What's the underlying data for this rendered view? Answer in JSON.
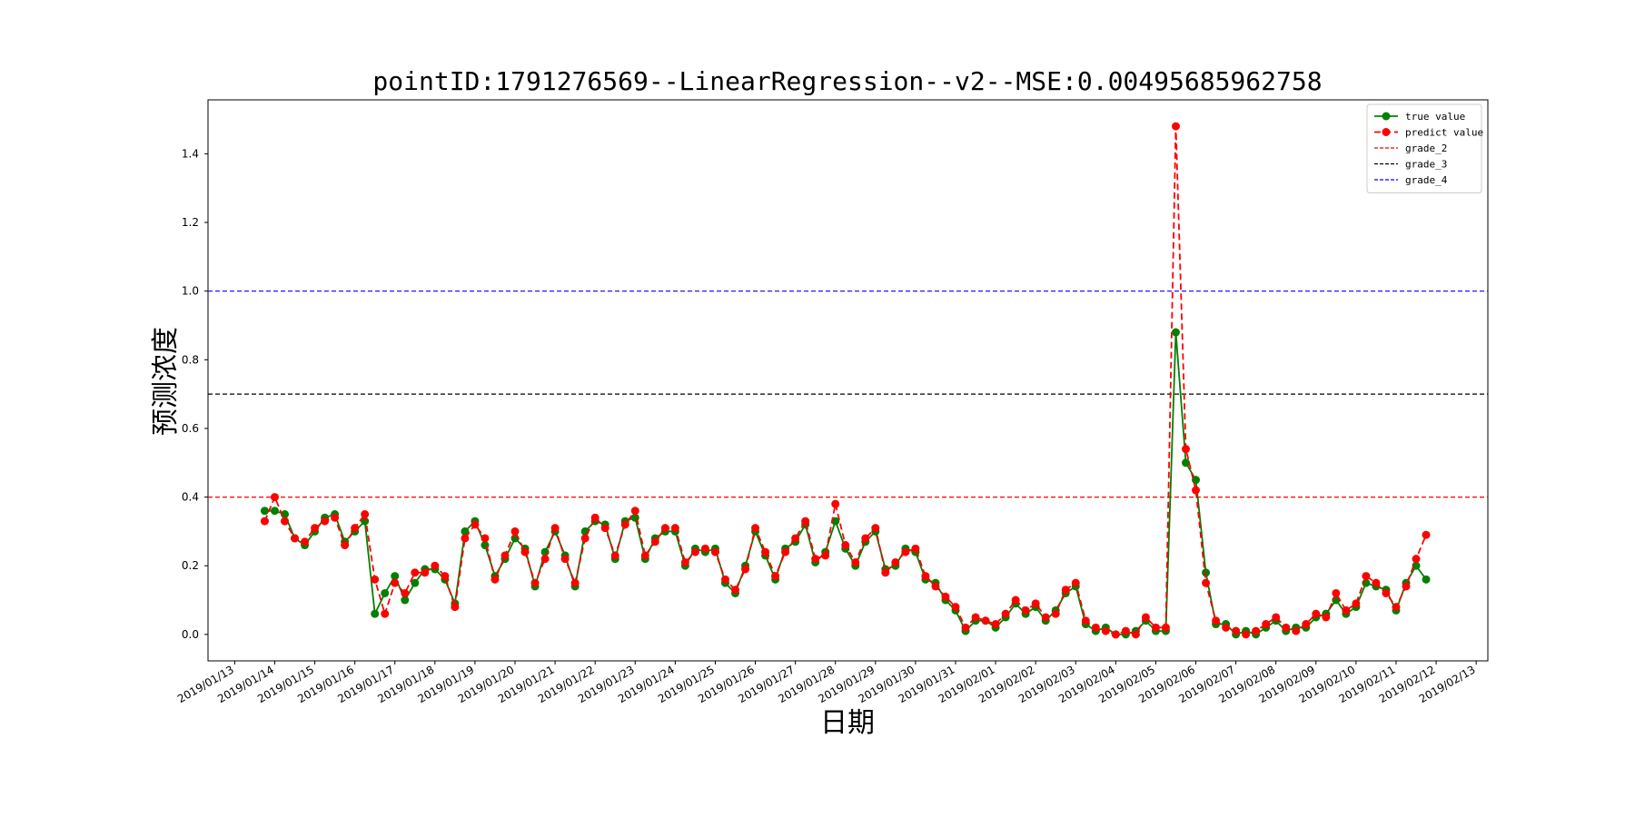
{
  "chart_data": {
    "type": "line",
    "title": "pointID:1791276569--LinearRegression--v2--MSE:0.00495685962758",
    "x_label": "日期",
    "y_label": "预测浓度",
    "x": [
      "2019/01/13 18:00",
      "2019/01/14 00:00",
      "2019/01/14 06:00",
      "2019/01/14 12:00",
      "2019/01/14 18:00",
      "2019/01/15 00:00",
      "2019/01/15 06:00",
      "2019/01/15 12:00",
      "2019/01/15 18:00",
      "2019/01/16 00:00",
      "2019/01/16 06:00",
      "2019/01/16 12:00",
      "2019/01/16 18:00",
      "2019/01/17 00:00",
      "2019/01/17 06:00",
      "2019/01/17 12:00",
      "2019/01/17 18:00",
      "2019/01/18 00:00",
      "2019/01/18 06:00",
      "2019/01/18 12:00",
      "2019/01/18 18:00",
      "2019/01/19 00:00",
      "2019/01/19 06:00",
      "2019/01/19 12:00",
      "2019/01/19 18:00",
      "2019/01/20 00:00",
      "2019/01/20 06:00",
      "2019/01/20 12:00",
      "2019/01/20 18:00",
      "2019/01/21 00:00",
      "2019/01/21 06:00",
      "2019/01/21 12:00",
      "2019/01/21 18:00",
      "2019/01/22 00:00",
      "2019/01/22 06:00",
      "2019/01/22 12:00",
      "2019/01/22 18:00",
      "2019/01/23 00:00",
      "2019/01/23 06:00",
      "2019/01/23 12:00",
      "2019/01/23 18:00",
      "2019/01/24 00:00",
      "2019/01/24 06:00",
      "2019/01/24 12:00",
      "2019/01/24 18:00",
      "2019/01/25 00:00",
      "2019/01/25 06:00",
      "2019/01/25 12:00",
      "2019/01/25 18:00",
      "2019/01/26 00:00",
      "2019/01/26 06:00",
      "2019/01/26 12:00",
      "2019/01/26 18:00",
      "2019/01/27 00:00",
      "2019/01/27 06:00",
      "2019/01/27 12:00",
      "2019/01/27 18:00",
      "2019/01/28 00:00",
      "2019/01/28 06:00",
      "2019/01/28 12:00",
      "2019/01/28 18:00",
      "2019/01/29 00:00",
      "2019/01/29 06:00",
      "2019/01/29 12:00",
      "2019/01/29 18:00",
      "2019/01/30 00:00",
      "2019/01/30 06:00",
      "2019/01/30 12:00",
      "2019/01/30 18:00",
      "2019/01/31 00:00",
      "2019/01/31 06:00",
      "2019/01/31 12:00",
      "2019/01/31 18:00",
      "2019/02/01 00:00",
      "2019/02/01 06:00",
      "2019/02/01 12:00",
      "2019/02/01 18:00",
      "2019/02/02 00:00",
      "2019/02/02 06:00",
      "2019/02/02 12:00",
      "2019/02/02 18:00",
      "2019/02/03 00:00",
      "2019/02/03 06:00",
      "2019/02/03 12:00",
      "2019/02/03 18:00",
      "2019/02/04 00:00",
      "2019/02/04 06:00",
      "2019/02/04 12:00",
      "2019/02/04 18:00",
      "2019/02/05 00:00",
      "2019/02/05 06:00",
      "2019/02/05 12:00",
      "2019/02/05 18:00",
      "2019/02/06 00:00",
      "2019/02/06 06:00",
      "2019/02/06 12:00",
      "2019/02/06 18:00",
      "2019/02/07 00:00",
      "2019/02/07 06:00",
      "2019/02/07 12:00",
      "2019/02/07 18:00",
      "2019/02/08 00:00",
      "2019/02/08 06:00",
      "2019/02/08 12:00",
      "2019/02/08 18:00",
      "2019/02/09 00:00",
      "2019/02/09 06:00",
      "2019/02/09 12:00",
      "2019/02/09 18:00",
      "2019/02/10 00:00",
      "2019/02/10 06:00",
      "2019/02/10 12:00",
      "2019/02/10 18:00",
      "2019/02/11 00:00",
      "2019/02/11 06:00",
      "2019/02/11 12:00",
      "2019/02/11 18:00"
    ],
    "series": [
      {
        "name": "true value",
        "color": "green",
        "linestyle": "solid",
        "values": [
          0.36,
          0.36,
          0.35,
          0.28,
          0.26,
          0.3,
          0.34,
          0.35,
          0.27,
          0.3,
          0.33,
          0.06,
          0.12,
          0.17,
          0.1,
          0.15,
          0.19,
          0.19,
          0.16,
          0.09,
          0.3,
          0.33,
          0.26,
          0.17,
          0.22,
          0.28,
          0.25,
          0.14,
          0.24,
          0.3,
          0.23,
          0.14,
          0.3,
          0.33,
          0.32,
          0.22,
          0.33,
          0.34,
          0.22,
          0.28,
          0.3,
          0.3,
          0.2,
          0.25,
          0.24,
          0.25,
          0.15,
          0.12,
          0.2,
          0.3,
          0.23,
          0.16,
          0.25,
          0.27,
          0.32,
          0.21,
          0.24,
          0.33,
          0.25,
          0.2,
          0.27,
          0.3,
          0.19,
          0.2,
          0.25,
          0.24,
          0.16,
          0.15,
          0.1,
          0.07,
          0.01,
          0.04,
          0.04,
          0.02,
          0.05,
          0.09,
          0.06,
          0.08,
          0.04,
          0.07,
          0.12,
          0.14,
          0.03,
          0.01,
          0.02,
          0.0,
          0.0,
          0.01,
          0.04,
          0.01,
          0.01,
          0.88,
          0.5,
          0.45,
          0.18,
          0.03,
          0.03,
          0.0,
          0.01,
          0.0,
          0.02,
          0.04,
          0.01,
          0.02,
          0.02,
          0.05,
          0.06,
          0.1,
          0.06,
          0.08,
          0.15,
          0.14,
          0.13,
          0.07,
          0.15,
          0.2,
          0.16
        ]
      },
      {
        "name": "predict value",
        "color": "red",
        "linestyle": "dashed",
        "values": [
          0.33,
          0.4,
          0.33,
          0.28,
          0.27,
          0.31,
          0.33,
          0.34,
          0.26,
          0.31,
          0.35,
          0.16,
          0.06,
          0.15,
          0.12,
          0.18,
          0.18,
          0.2,
          0.17,
          0.08,
          0.28,
          0.32,
          0.28,
          0.16,
          0.23,
          0.3,
          0.24,
          0.15,
          0.22,
          0.31,
          0.22,
          0.15,
          0.28,
          0.34,
          0.31,
          0.23,
          0.32,
          0.36,
          0.23,
          0.27,
          0.31,
          0.31,
          0.21,
          0.24,
          0.25,
          0.24,
          0.16,
          0.13,
          0.19,
          0.31,
          0.24,
          0.17,
          0.24,
          0.28,
          0.33,
          0.22,
          0.23,
          0.38,
          0.26,
          0.21,
          0.28,
          0.31,
          0.18,
          0.21,
          0.24,
          0.25,
          0.17,
          0.14,
          0.11,
          0.08,
          0.02,
          0.05,
          0.04,
          0.03,
          0.06,
          0.1,
          0.07,
          0.09,
          0.05,
          0.06,
          0.13,
          0.15,
          0.04,
          0.02,
          0.01,
          0.0,
          0.01,
          0.0,
          0.05,
          0.02,
          0.02,
          1.48,
          0.54,
          0.42,
          0.15,
          0.04,
          0.02,
          0.01,
          0.0,
          0.01,
          0.03,
          0.05,
          0.02,
          0.01,
          0.03,
          0.06,
          0.05,
          0.12,
          0.07,
          0.09,
          0.17,
          0.15,
          0.12,
          0.08,
          0.14,
          0.22,
          0.29
        ]
      }
    ],
    "hlines": [
      {
        "name": "grade_2",
        "value": 0.4,
        "color": "red"
      },
      {
        "name": "grade_3",
        "value": 0.7,
        "color": "black"
      },
      {
        "name": "grade_4",
        "value": 1.0,
        "color": "blue"
      }
    ],
    "xlim": [
      "2019/01/12 08:00",
      "2019/02/13 07:00"
    ],
    "xticks": [
      "2019/01/13",
      "2019/01/14",
      "2019/01/15",
      "2019/01/16",
      "2019/01/17",
      "2019/01/18",
      "2019/01/19",
      "2019/01/20",
      "2019/01/21",
      "2019/01/22",
      "2019/01/23",
      "2019/01/24",
      "2019/01/25",
      "2019/01/26",
      "2019/01/27",
      "2019/01/28",
      "2019/01/29",
      "2019/01/30",
      "2019/01/31",
      "2019/02/01",
      "2019/02/02",
      "2019/02/03",
      "2019/02/04",
      "2019/02/05",
      "2019/02/06",
      "2019/02/07",
      "2019/02/08",
      "2019/02/09",
      "2019/02/10",
      "2019/02/11",
      "2019/02/12",
      "2019/02/13"
    ],
    "ylim": [
      -0.077,
      1.557
    ],
    "yticks": [
      {
        "value": 0,
        "label": "0.0"
      },
      0.2,
      0.4,
      0.6,
      0.8,
      {
        "value": 1,
        "label": "1.0"
      },
      1.2,
      1.4
    ],
    "legend": "upper right"
  }
}
